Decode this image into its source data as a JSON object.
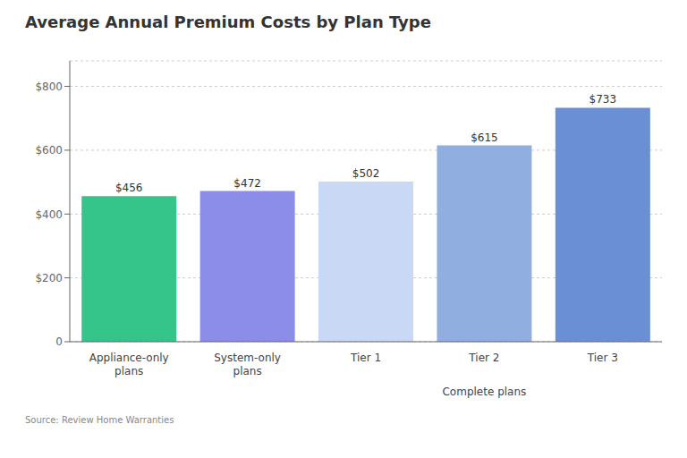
{
  "chart_data": {
    "type": "bar",
    "title": "Average Annual Premium Costs by Plan Type",
    "categories": [
      "Appliance-only\nplans",
      "System-only\nplans",
      "Tier 1",
      "Tier 2",
      "Tier 3"
    ],
    "values": [
      456,
      472,
      502,
      615,
      733
    ],
    "value_labels": [
      "$456",
      "$472",
      "$502",
      "$615",
      "$733"
    ],
    "colors": [
      "#35c48a",
      "#8b8de8",
      "#c8d8f5",
      "#90aee0",
      "#6b8fd4"
    ],
    "data_labels": true,
    "ylim": [
      0,
      880
    ],
    "yticks": [
      0,
      {
        "value": 200,
        "label": "$200"
      },
      {
        "value": 400,
        "label": "$400"
      },
      {
        "value": 600,
        "label": "$600"
      },
      {
        "value": 800,
        "label": "$800"
      }
    ],
    "grid": true,
    "annotations": [
      "Complete plans",
      "Source: Review Home Warranties"
    ]
  }
}
